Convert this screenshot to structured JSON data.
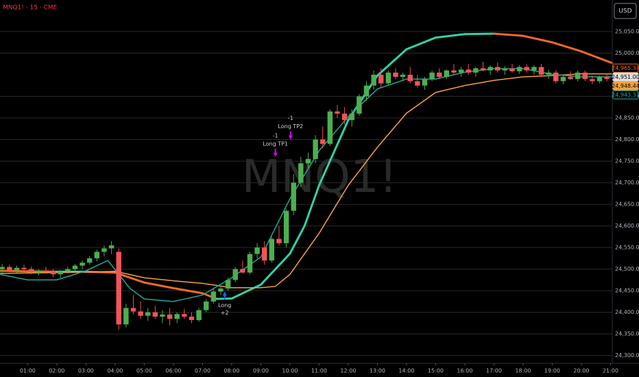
{
  "chart_data": {
    "type": "candlestick",
    "title": "MNQ1! · 15 · CME",
    "watermark": "MNQ1!",
    "currency": "USD",
    "xlim": [
      0.05,
      21.06
    ],
    "ylim": [
      24282,
      25123
    ],
    "grid": true,
    "up_color": "#4caf50",
    "down_color": "#f05459",
    "xticks": [
      {
        "value": 1,
        "label": "01:00"
      },
      {
        "value": 2,
        "label": "02:00"
      },
      {
        "value": 3,
        "label": "03:00"
      },
      {
        "value": 4,
        "label": "04:00"
      },
      {
        "value": 5,
        "label": "05:00"
      },
      {
        "value": 6,
        "label": "06:00"
      },
      {
        "value": 7,
        "label": "07:00"
      },
      {
        "value": 8,
        "label": "08:00"
      },
      {
        "value": 9,
        "label": "09:00"
      },
      {
        "value": 10,
        "label": "10:00"
      },
      {
        "value": 11,
        "label": "11:00"
      },
      {
        "value": 12,
        "label": "12:00"
      },
      {
        "value": 13,
        "label": "13:00"
      },
      {
        "value": 14,
        "label": "14:00"
      },
      {
        "value": 15,
        "label": "15:00"
      },
      {
        "value": 16,
        "label": "16:00"
      },
      {
        "value": 17,
        "label": "17:00"
      },
      {
        "value": 18,
        "label": "18:00"
      },
      {
        "value": 19,
        "label": "19:00"
      },
      {
        "value": 20,
        "label": "20:00"
      },
      {
        "value": 21,
        "label": "21:00"
      }
    ],
    "yticks": [
      {
        "value": 24300,
        "label": "24,300.00"
      },
      {
        "value": 24350,
        "label": "24,350.00"
      },
      {
        "value": 24400,
        "label": "24,400.00"
      },
      {
        "value": 24450,
        "label": "24,450.00"
      },
      {
        "value": 24500,
        "label": "24,500.00"
      },
      {
        "value": 24550,
        "label": "24,550.00"
      },
      {
        "value": 24600,
        "label": "24,600.00"
      },
      {
        "value": 24650,
        "label": "24,650.00"
      },
      {
        "value": 24700,
        "label": "24,700.00"
      },
      {
        "value": 24750,
        "label": "24,750.00"
      },
      {
        "value": 24800,
        "label": "24,800.00"
      },
      {
        "value": 24850,
        "label": "24,850.00"
      },
      {
        "value": 24900,
        "label": "24,900.00"
      },
      {
        "value": 25000,
        "label": "25,000.00"
      },
      {
        "value": 25050,
        "label": "25,050.00"
      }
    ],
    "x": [
      0.125,
      0.375,
      0.625,
      0.875,
      1.125,
      1.375,
      1.625,
      1.875,
      2.125,
      2.375,
      2.625,
      2.875,
      3.125,
      3.375,
      3.625,
      3.875,
      4.125,
      4.375,
      4.625,
      4.875,
      5.125,
      5.375,
      5.625,
      5.875,
      6.125,
      6.375,
      6.625,
      6.875,
      7.125,
      7.375,
      7.625,
      7.875,
      8.125,
      8.375,
      8.625,
      8.875,
      9.125,
      9.375,
      9.625,
      9.875,
      10.125,
      10.375,
      10.625,
      10.875,
      11.125,
      11.375,
      11.625,
      11.875,
      12.125,
      12.375,
      12.625,
      12.875,
      13.125,
      13.375,
      13.625,
      13.875,
      14.125,
      14.375,
      14.625,
      14.875,
      15.125,
      15.375,
      15.625,
      15.875,
      16.125,
      16.375,
      16.625,
      16.875,
      17.125,
      17.375,
      17.625,
      17.875,
      18.125,
      18.375,
      18.625,
      18.875,
      19.125,
      19.375,
      19.625,
      19.875,
      20.125,
      20.375,
      20.625,
      20.875
    ],
    "open": [
      24500,
      24505,
      24498,
      24503,
      24500,
      24492,
      24497,
      24494,
      24488,
      24495,
      24500,
      24508,
      24515,
      24525,
      24540,
      24548,
      24540,
      24372,
      24410,
      24402,
      24392,
      24400,
      24390,
      24395,
      24385,
      24396,
      24390,
      24382,
      24405,
      24425,
      24448,
      24455,
      24475,
      24500,
      24492,
      24535,
      24550,
      24520,
      24570,
      24560,
      24635,
      24700,
      24745,
      24755,
      24800,
      24790,
      24865,
      24860,
      24845,
      24860,
      24900,
      24925,
      24950,
      24930,
      24955,
      24945,
      24950,
      24935,
      24925,
      24940,
      24955,
      24945,
      24960,
      24955,
      24962,
      24955,
      24965,
      24960,
      24968,
      24960,
      24965,
      24958,
      24968,
      24960,
      24968,
      24950,
      24955,
      24935,
      24945,
      24940,
      24955,
      24940,
      24935,
      24945
    ],
    "high": [
      24512,
      24510,
      24508,
      24510,
      24506,
      24500,
      24505,
      24500,
      24498,
      24505,
      24512,
      24520,
      24530,
      24545,
      24555,
      24565,
      24548,
      24420,
      24440,
      24425,
      24410,
      24415,
      24405,
      24410,
      24400,
      24408,
      24400,
      24410,
      24430,
      24455,
      24462,
      24480,
      24505,
      24520,
      24540,
      24560,
      24565,
      24575,
      24600,
      24640,
      24720,
      24760,
      24770,
      24810,
      24830,
      24870,
      24880,
      24875,
      24870,
      24905,
      24935,
      24960,
      24965,
      24960,
      24965,
      24955,
      24968,
      24950,
      24945,
      24960,
      24965,
      24962,
      24975,
      24968,
      24975,
      24968,
      24980,
      24972,
      24978,
      24970,
      24975,
      24972,
      24975,
      24972,
      24975,
      24962,
      24960,
      24948,
      24958,
      24960,
      24960,
      24948,
      24948,
      24952
    ],
    "low": [
      24490,
      24495,
      24492,
      24495,
      24488,
      24485,
      24490,
      24482,
      24480,
      24490,
      24495,
      24500,
      24510,
      24518,
      24530,
      24535,
      24360,
      24365,
      24395,
      24385,
      24380,
      24385,
      24375,
      24370,
      24375,
      24385,
      24375,
      24378,
      24400,
      24420,
      24440,
      24450,
      24470,
      24490,
      24488,
      24525,
      24510,
      24515,
      24555,
      24550,
      24625,
      24690,
      24735,
      24745,
      24780,
      24785,
      24850,
      24835,
      24830,
      24855,
      24890,
      24915,
      24920,
      24925,
      24940,
      24935,
      24930,
      24920,
      24915,
      24935,
      24940,
      24940,
      24950,
      24945,
      24950,
      24945,
      24958,
      24950,
      24955,
      24950,
      24955,
      24952,
      24955,
      24950,
      24945,
      24940,
      24930,
      24928,
      24938,
      24935,
      24935,
      24928,
      24930,
      24935
    ],
    "close": [
      24505,
      24498,
      24503,
      24500,
      24492,
      24497,
      24494,
      24488,
      24495,
      24500,
      24508,
      24515,
      24525,
      24540,
      24548,
      24555,
      24372,
      24410,
      24402,
      24392,
      24400,
      24390,
      24395,
      24385,
      24396,
      24390,
      24382,
      24405,
      24425,
      24448,
      24455,
      24475,
      24500,
      24492,
      24535,
      24550,
      24520,
      24570,
      24560,
      24635,
      24700,
      24745,
      24755,
      24800,
      24790,
      24865,
      24860,
      24845,
      24860,
      24900,
      24925,
      24950,
      24930,
      24955,
      24945,
      24950,
      24935,
      24925,
      24940,
      24955,
      24945,
      24960,
      24955,
      24962,
      24955,
      24965,
      24960,
      24968,
      24960,
      24965,
      24958,
      24968,
      24960,
      24968,
      24950,
      24955,
      24935,
      24945,
      24940,
      24955,
      24940,
      24935,
      24945,
      24940
    ],
    "lines": [
      {
        "color": "#f0692a",
        "up_color": "#2ed3a8",
        "width": 3,
        "x": [
          0.05,
          1,
          2,
          3,
          4,
          5,
          6,
          7,
          7.5,
          8,
          9,
          10,
          10.5,
          11,
          12,
          13,
          14,
          15,
          16,
          17,
          18,
          19,
          20,
          21.06
        ],
        "values": [
          24496,
          24495,
          24494,
          24494,
          24492,
          24469,
          24456,
          24444,
          24431,
          24432,
          24464,
          24536,
          24600,
          24694,
          24845,
          24948,
          25009,
          25036,
          25044,
          25045,
          25040,
          25025,
          25004,
          24977
        ]
      },
      {
        "color": "#f5a03c",
        "width": 1.5,
        "x": [
          0.05,
          3,
          4,
          5,
          6,
          7,
          8,
          9,
          9.5,
          10,
          11,
          12,
          13,
          14,
          15,
          16,
          17,
          18,
          19,
          20,
          21.06
        ],
        "values": [
          24490,
          24493,
          24495,
          24480,
          24473,
          24467,
          24457,
          24457,
          24460,
          24488,
          24583,
          24694,
          24782,
          24861,
          24909,
          24925,
          24937,
          24945,
          24948,
          24952,
          24952
        ]
      },
      {
        "color": "#26a69a",
        "width": 1.5,
        "x": [
          0.05,
          1,
          2,
          3,
          3.75,
          4.5,
          5,
          6,
          7,
          8,
          9,
          10,
          11,
          12,
          13,
          14,
          15,
          16,
          17,
          18,
          19,
          20,
          21.06
        ],
        "values": [
          24488,
          24475,
          24475,
          24496,
          24520,
          24456,
          24431,
          24425,
          24440,
          24480,
          24528,
          24663,
          24774,
          24853,
          24917,
          24940,
          24940,
          24956,
          24964,
          24964,
          24951,
          24945,
          24945
        ]
      }
    ],
    "price_tags": [
      {
        "value": 24965.34,
        "label": "24,965.34",
        "color": "#f0692a",
        "style": "outline"
      },
      {
        "value": 24951,
        "label": "24,951.00",
        "color": "#e0e0e0",
        "style": "fill"
      },
      {
        "value": 24948.44,
        "label": "24,948.44",
        "color": "#f5a03c",
        "style": "fill"
      },
      {
        "value": 24943.37,
        "label": "24,943.37",
        "color": "#26a69a",
        "style": "outline"
      }
    ],
    "signals": [
      {
        "x": 7.76,
        "y": 24448,
        "label": "Long",
        "qty": "+2",
        "dir": "up",
        "color": "#2962ff"
      },
      {
        "x": 9.5,
        "y": 24760,
        "label": "Long TP1",
        "qty": "-1",
        "dir": "down",
        "color": "#d500f9"
      },
      {
        "x": 10.02,
        "y": 24800,
        "label": "Long TP2",
        "qty": "-1",
        "dir": "down",
        "color": "#d500f9"
      }
    ]
  }
}
